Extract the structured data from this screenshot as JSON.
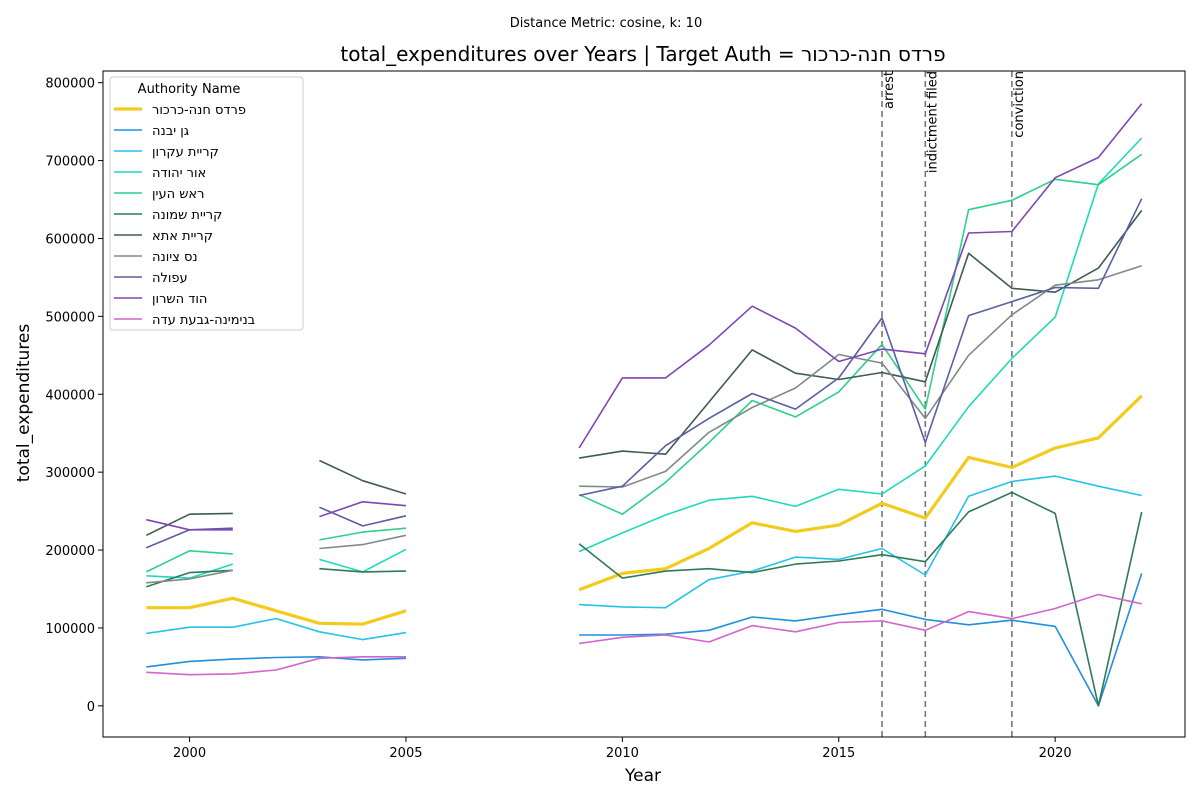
{
  "suptitle": "Distance Metric: cosine, k: 10",
  "chart_data": {
    "type": "line",
    "title": "total_expenditures over Years | Target Auth = פרדס חנה-כרכור",
    "xlabel": "Year",
    "ylabel": "total_expenditures",
    "xlim": [
      1998,
      2023
    ],
    "ylim": [
      -40000,
      815000
    ],
    "x_ticks": [
      2000,
      2005,
      2010,
      2015,
      2020
    ],
    "y_ticks": [
      0,
      100000,
      200000,
      300000,
      400000,
      500000,
      600000,
      700000,
      800000
    ],
    "grid": false,
    "legend": {
      "title": "Authority Name",
      "placement": "upper left"
    },
    "x": [
      1999,
      2000,
      2001,
      2002,
      2003,
      2004,
      2005,
      2006,
      2007,
      2008,
      2009,
      2010,
      2011,
      2012,
      2013,
      2014,
      2015,
      2016,
      2017,
      2018,
      2019,
      2020,
      2021,
      2022
    ],
    "events": [
      {
        "x": 2016,
        "label": "arrest"
      },
      {
        "x": 2017,
        "label": "indictment filed"
      },
      {
        "x": 2019,
        "label": "conviction"
      }
    ],
    "series": [
      {
        "name": "פרדס חנה-כרכור",
        "color": "#f2cb1d",
        "width": 3.2,
        "values": [
          126000,
          126000,
          138000,
          122000,
          106000,
          105000,
          122000,
          null,
          null,
          null,
          149000,
          170000,
          176000,
          202000,
          235000,
          224000,
          232000,
          260000,
          241000,
          319000,
          306000,
          331000,
          344000,
          398000
        ]
      },
      {
        "name": "גן יבנה",
        "color": "#1f8fe0",
        "width": 1.6,
        "values": [
          50000,
          57000,
          60000,
          62000,
          63000,
          59000,
          61000,
          null,
          null,
          null,
          91000,
          91000,
          92000,
          97000,
          114000,
          109000,
          117000,
          124000,
          111000,
          104000,
          110000,
          102000,
          0,
          170000
        ]
      },
      {
        "name": "קריית עקרון",
        "color": "#25c2ea",
        "width": 1.6,
        "values": [
          93000,
          101000,
          101000,
          112000,
          95000,
          85000,
          94000,
          null,
          null,
          null,
          130000,
          127000,
          126000,
          162000,
          173000,
          191000,
          188000,
          202000,
          168000,
          269000,
          288000,
          295000,
          282000,
          270000
        ]
      },
      {
        "name": "אור יהודה",
        "color": "#1ddabd",
        "width": 1.6,
        "values": [
          167000,
          164000,
          182000,
          null,
          188000,
          172000,
          201000,
          null,
          null,
          null,
          198000,
          222000,
          245000,
          264000,
          269000,
          256000,
          278000,
          272000,
          308000,
          384000,
          446000,
          499000,
          670000,
          729000
        ]
      },
      {
        "name": "ראש העין",
        "color": "#2fd08a",
        "width": 1.6,
        "values": [
          172000,
          199000,
          195000,
          null,
          213000,
          223000,
          228000,
          null,
          null,
          null,
          271000,
          246000,
          287000,
          338000,
          392000,
          371000,
          403000,
          464000,
          381000,
          637000,
          649000,
          676000,
          669000,
          708000
        ]
      },
      {
        "name": "קריית שמונה",
        "color": "#317a57",
        "width": 1.6,
        "values": [
          153000,
          171000,
          174000,
          null,
          176000,
          172000,
          173000,
          null,
          null,
          null,
          208000,
          164000,
          173000,
          176000,
          171000,
          182000,
          186000,
          194000,
          185000,
          249000,
          274000,
          247000,
          0,
          249000
        ]
      },
      {
        "name": "קריית אתא",
        "color": "#3e5c52",
        "width": 1.6,
        "values": [
          219000,
          246000,
          247000,
          null,
          315000,
          289000,
          272000,
          null,
          null,
          null,
          318000,
          327000,
          323000,
          390000,
          457000,
          427000,
          419000,
          428000,
          416000,
          581000,
          536000,
          531000,
          562000,
          636000
        ]
      },
      {
        "name": "נס ציונה",
        "color": "#7f8b87",
        "width": 1.6,
        "values": [
          158000,
          163000,
          174000,
          null,
          202000,
          207000,
          219000,
          null,
          null,
          null,
          282000,
          281000,
          301000,
          351000,
          383000,
          408000,
          451000,
          440000,
          369000,
          450000,
          502000,
          540000,
          547000,
          565000
        ]
      },
      {
        "name": "עפולה",
        "color": "#5b5fa2",
        "width": 1.6,
        "values": [
          203000,
          226000,
          228000,
          null,
          255000,
          231000,
          244000,
          null,
          null,
          null,
          270000,
          282000,
          334000,
          369000,
          401000,
          381000,
          421000,
          498000,
          338000,
          501000,
          519000,
          537000,
          536000,
          651000
        ]
      },
      {
        "name": "הוד השרון",
        "color": "#8045b5",
        "width": 1.6,
        "values": [
          239000,
          226000,
          226000,
          null,
          243000,
          262000,
          257000,
          null,
          null,
          null,
          331000,
          421000,
          421000,
          463000,
          513000,
          485000,
          442000,
          458000,
          452000,
          607000,
          609000,
          678000,
          704000,
          773000
        ]
      },
      {
        "name": "בנימינה-גבעת עדה",
        "color": "#d264cb",
        "width": 1.6,
        "values": [
          43000,
          40000,
          41000,
          46000,
          61000,
          63000,
          63000,
          null,
          null,
          null,
          80000,
          88000,
          91000,
          82000,
          103000,
          95000,
          107000,
          109000,
          97000,
          121000,
          112000,
          125000,
          143000,
          131000
        ]
      }
    ]
  }
}
